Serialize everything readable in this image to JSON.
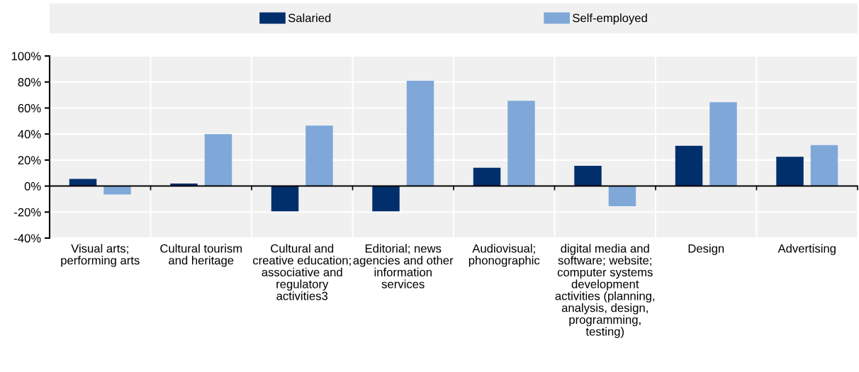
{
  "chart_data": {
    "type": "bar",
    "categories": [
      "Visual arts;\nperforming arts",
      "Cultural tourism\nand heritage",
      "Cultural and\ncreative education;\nassociative and\nregulatory\nactivities3",
      "Editorial; news\nagencies and other\ninformation\nservices",
      "Audiovisual;\nphonographic",
      "digital media and\nsoftware; website;\ncomputer systems\ndevelopment\nactivities (planning,\nanalysis, design,\nprogramming,\ntesting)",
      "Design",
      "Advertising"
    ],
    "series": [
      {
        "name": "Salaried",
        "color": "#002f6c",
        "values": [
          5.5,
          2,
          -19.5,
          -19.5,
          14,
          15.5,
          31,
          22.5
        ]
      },
      {
        "name": "Self-employed",
        "color": "#7fa8d9",
        "values": [
          -6.5,
          40,
          46.5,
          81,
          65.5,
          -15.5,
          64.5,
          31.5
        ]
      }
    ],
    "ylim": [
      -40,
      100
    ],
    "yticks": [
      {
        "value": -40,
        "label": "-40%"
      },
      {
        "value": -20,
        "label": "-20%"
      },
      {
        "value": 0,
        "label": "0%"
      },
      {
        "value": 20,
        "label": "20%"
      },
      {
        "value": 40,
        "label": "40%"
      },
      {
        "value": 60,
        "label": "60%"
      },
      {
        "value": 80,
        "label": "80%"
      },
      {
        "value": 100,
        "label": "100%"
      }
    ],
    "grid": true,
    "legend": "top"
  }
}
